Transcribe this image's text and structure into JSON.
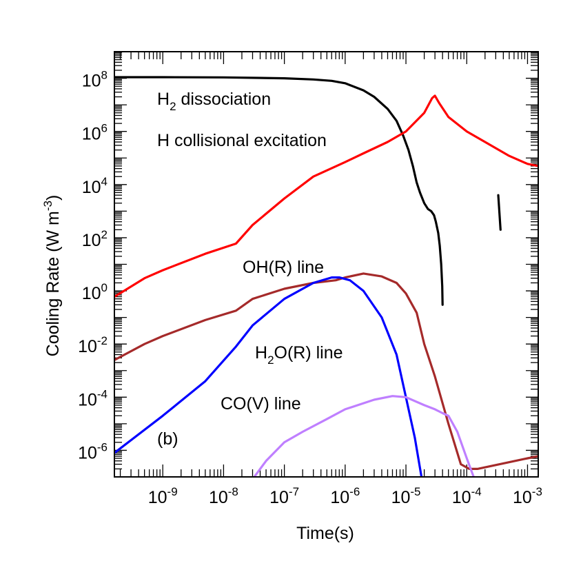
{
  "chart_data": {
    "type": "line",
    "panel_label": "(b)",
    "xlabel": "Time(s)",
    "ylabel": {
      "text": "Cooling Rate (W m",
      "sup": "-3",
      "close": ")"
    },
    "x_scale": "log",
    "y_scale": "log",
    "xlim": [
      1.6e-10,
      0.0015
    ],
    "ylim": [
      1e-07,
      1000000000.0
    ],
    "x_ticks": [
      {
        "value": 1e-09,
        "base": "10",
        "exp": "-9"
      },
      {
        "value": 1e-08,
        "base": "10",
        "exp": "-8"
      },
      {
        "value": 1e-07,
        "base": "10",
        "exp": "-7"
      },
      {
        "value": 1e-06,
        "base": "10",
        "exp": "-6"
      },
      {
        "value": 1e-05,
        "base": "10",
        "exp": "-5"
      },
      {
        "value": 0.0001,
        "base": "10",
        "exp": "-4"
      },
      {
        "value": 0.001,
        "base": "10",
        "exp": "-3"
      }
    ],
    "y_ticks": [
      {
        "value": 100000000.0,
        "base": "10",
        "exp": "8"
      },
      {
        "value": 1000000.0,
        "base": "10",
        "exp": "6"
      },
      {
        "value": 10000.0,
        "base": "10",
        "exp": "4"
      },
      {
        "value": 100.0,
        "base": "10",
        "exp": "2"
      },
      {
        "value": 1.0,
        "base": "10",
        "exp": "0"
      },
      {
        "value": 0.01,
        "base": "10",
        "exp": "-2"
      },
      {
        "value": 0.0001,
        "base": "10",
        "exp": "-4"
      },
      {
        "value": 1e-06,
        "base": "10",
        "exp": "-6"
      }
    ],
    "series": [
      {
        "label": {
          "main": "H",
          "sub": "2",
          "rest": " dissociation"
        },
        "color": "#000000",
        "segments": [
          [
            [
              1.6e-10,
              110000000.0
            ],
            [
              1e-09,
              110000000.0
            ],
            [
              1e-08,
              108000000.0
            ],
            [
              1e-07,
              100000000.0
            ],
            [
              3e-07,
              90000000.0
            ],
            [
              6e-07,
              80000000.0
            ],
            [
              1e-06,
              65000000.0
            ],
            [
              2e-06,
              35000000.0
            ],
            [
              3e-06,
              20000000.0
            ],
            [
              5e-06,
              7000000.0
            ],
            [
              7e-06,
              2500000.0
            ],
            [
              9e-06,
              700000.0
            ],
            [
              1.1e-05,
              200000.0
            ],
            [
              1.3e-05,
              50000.0
            ],
            [
              1.5e-05,
              12000.0
            ],
            [
              1.7e-05,
              5000.0
            ],
            [
              2e-05,
              2000.0
            ],
            [
              2.3e-05,
              1200.0
            ],
            [
              2.6e-05,
              1000.0
            ],
            [
              2.9e-05,
              700.0
            ],
            [
              3.1e-05,
              400.0
            ],
            [
              3.4e-05,
              150.0
            ],
            [
              3.6e-05,
              50.0
            ],
            [
              3.8e-05,
              10
            ],
            [
              3.95e-05,
              1.5
            ],
            [
              4e-05,
              0.3
            ]
          ],
          [
            [
              0.00033,
              4000.0
            ],
            [
              0.00036,
              200
            ]
          ]
        ]
      },
      {
        "label": {
          "main": "H collisional excitation"
        },
        "color": "#ff0000",
        "segments": [
          [
            [
              1.6e-10,
              0.6
            ],
            [
              5e-10,
              3
            ],
            [
              1e-09,
              6
            ],
            [
              5e-09,
              25
            ],
            [
              1.6e-08,
              60
            ],
            [
              3e-08,
              300
            ],
            [
              1e-07,
              3000
            ],
            [
              3e-07,
              20000.0
            ],
            [
              1e-06,
              70000.0
            ],
            [
              2e-06,
              150000.0
            ],
            [
              5e-06,
              400000.0
            ],
            [
              1e-05,
              1000000.0
            ],
            [
              2e-05,
              5000000.0
            ],
            [
              2.7e-05,
              18000000.0
            ],
            [
              3e-05,
              22000000.0
            ],
            [
              3.5e-05,
              12000000.0
            ],
            [
              5e-05,
              3500000.0
            ],
            [
              0.0001,
              1000000.0
            ],
            [
              0.0002,
              400000.0
            ],
            [
              0.0005,
              120000.0
            ],
            [
              0.001,
              60000.0
            ],
            [
              0.0015,
              50000.0
            ]
          ]
        ]
      },
      {
        "label": {
          "main": "OH(R) line"
        },
        "color": "#a52a2a",
        "segments": [
          [
            [
              1.6e-10,
              0.0025
            ],
            [
              5e-10,
              0.01
            ],
            [
              1e-09,
              0.02
            ],
            [
              5e-09,
              0.08
            ],
            [
              1.6e-08,
              0.18
            ],
            [
              3e-08,
              0.5
            ],
            [
              1e-07,
              1.2
            ],
            [
              3e-07,
              2.0
            ],
            [
              7e-07,
              2.5
            ],
            [
              1e-06,
              3.2
            ],
            [
              2e-06,
              4.5
            ],
            [
              4e-06,
              3.5
            ],
            [
              7e-06,
              2.0
            ],
            [
              1e-05,
              0.8
            ],
            [
              1.5e-05,
              0.15
            ],
            [
              2e-05,
              0.01
            ],
            [
              3e-05,
              0.0006
            ],
            [
              5e-05,
              1e-05
            ],
            [
              8e-05,
              3e-07
            ],
            [
              0.00011,
              2e-07
            ],
            [
              0.00015,
              2e-07
            ],
            [
              0.001,
              5e-07
            ],
            [
              0.0015,
              6e-07
            ]
          ]
        ]
      },
      {
        "label": {
          "main": "H",
          "sub": "2",
          "rest": "O(R) line"
        },
        "color": "#0000ff",
        "segments": [
          [
            [
              1.6e-10,
              8e-07
            ],
            [
              1e-09,
              2e-05
            ],
            [
              5e-09,
              0.0004
            ],
            [
              1.6e-08,
              0.008
            ],
            [
              3e-08,
              0.05
            ],
            [
              1e-07,
              0.5
            ],
            [
              3e-07,
              2
            ],
            [
              6e-07,
              3.2
            ],
            [
              8e-07,
              3.2
            ],
            [
              1.2e-06,
              2.5
            ],
            [
              2e-06,
              1.0
            ],
            [
              4e-06,
              0.1
            ],
            [
              7e-06,
              0.004
            ],
            [
              1e-05,
              0.0001
            ],
            [
              1.4e-05,
              3e-06
            ],
            [
              1.8e-05,
              1e-07
            ]
          ]
        ]
      },
      {
        "label": {
          "main": "CO(V) line"
        },
        "color": "#bf7fff",
        "segments": [
          [
            [
              3.2e-08,
              1e-07
            ],
            [
              5e-08,
              4e-07
            ],
            [
              1e-07,
              2e-06
            ],
            [
              2e-07,
              5e-06
            ],
            [
              5e-07,
              1.5e-05
            ],
            [
              1e-06,
              3.5e-05
            ],
            [
              3e-06,
              8e-05
            ],
            [
              6e-06,
              0.00011
            ],
            [
              1e-05,
              0.0001
            ],
            [
              2e-05,
              5e-05
            ],
            [
              3e-05,
              3.5e-05
            ],
            [
              4e-05,
              2.5e-05
            ],
            [
              5e-05,
              2e-05
            ],
            [
              7e-05,
              5e-06
            ],
            [
              0.0001,
              5e-07
            ],
            [
              0.00013,
              1e-07
            ]
          ]
        ]
      }
    ]
  }
}
